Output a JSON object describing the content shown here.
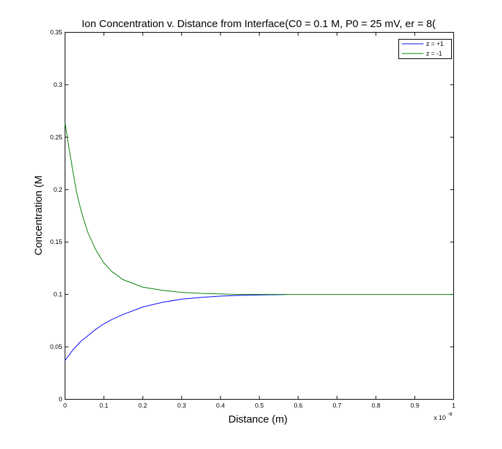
{
  "chart_data": {
    "type": "line",
    "title": "Ion Concentration v. Distance from Interface(C0 = 0.1 M, P0 = 25 mV, er = 8(",
    "xlabel": "Distance (m)",
    "ylabel": "Concentration (M",
    "x_multiplier": {
      "base": "x 10",
      "exponent": "-8"
    },
    "xlim": [
      0,
      1
    ],
    "ylim": [
      0,
      0.35
    ],
    "x_ticks": [
      "0",
      "0.1",
      "0.2",
      "0.3",
      "0.4",
      "0.5",
      "0.6",
      "0.7",
      "0.8",
      "0.9",
      "1"
    ],
    "y_ticks": [
      "0",
      "0.05",
      "0.1",
      "0.15",
      "0.2",
      "0.25",
      "0.3",
      "0.35"
    ],
    "grid": false,
    "legend_position": "top-right",
    "series": [
      {
        "name": "z = +1",
        "color": "#0000ff",
        "x": [
          0,
          0.02,
          0.04,
          0.06,
          0.08,
          0.1,
          0.12,
          0.15,
          0.2,
          0.25,
          0.3,
          0.35,
          0.4,
          0.45,
          0.5,
          0.55,
          0.57
        ],
        "y": [
          0.037,
          0.047,
          0.055,
          0.061,
          0.067,
          0.072,
          0.076,
          0.081,
          0.088,
          0.0925,
          0.0955,
          0.0972,
          0.0984,
          0.0991,
          0.0995,
          0.0998,
          0.1
        ]
      },
      {
        "name": "z = -1",
        "color": "#008000",
        "x": [
          0,
          0.01,
          0.02,
          0.03,
          0.04,
          0.05,
          0.06,
          0.08,
          0.1,
          0.12,
          0.15,
          0.2,
          0.25,
          0.3,
          0.35,
          0.4,
          0.45,
          0.5,
          0.6,
          0.7,
          0.8,
          0.9,
          1.0
        ],
        "y": [
          0.264,
          0.24,
          0.218,
          0.197,
          0.182,
          0.169,
          0.158,
          0.142,
          0.13,
          0.122,
          0.114,
          0.107,
          0.104,
          0.102,
          0.101,
          0.1005,
          0.1,
          0.1,
          0.1,
          0.1,
          0.1,
          0.1,
          0.1
        ]
      }
    ]
  }
}
